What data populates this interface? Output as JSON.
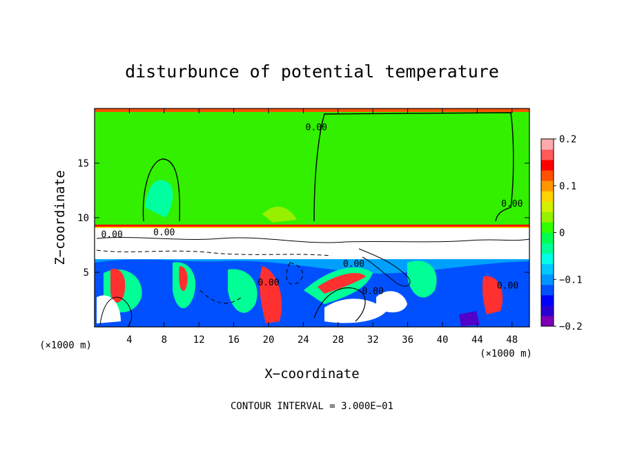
{
  "chart_data": {
    "type": "heatmap",
    "title": "disturbunce of potential temperature",
    "xlabel": "X−coordinate",
    "ylabel": "Z−coordinate",
    "x_unit_label": "(×1000 m)",
    "x_unit_label_right": "(×1000 m)",
    "footer": "CONTOUR INTERVAL = 3.000E−01",
    "xlim": [
      0,
      50
    ],
    "ylim": [
      0,
      20
    ],
    "x_ticks": [
      4,
      8,
      12,
      16,
      20,
      24,
      28,
      32,
      36,
      40,
      44,
      48
    ],
    "y_ticks": [
      5,
      10,
      15
    ],
    "colorbar": {
      "range": [
        -0.2,
        0.2
      ],
      "ticks": [
        {
          "value": 0.2,
          "label": "0.2"
        },
        {
          "value": 0.1,
          "label": "0.1"
        },
        {
          "value": 0,
          "label": "0"
        },
        {
          "value": -0.1,
          "label": "−0.1"
        },
        {
          "value": -0.2,
          "label": "−0.2"
        }
      ],
      "colors": [
        "#7d00b4",
        "#2800d2",
        "#0000ff",
        "#0050ff",
        "#0096ff",
        "#00c8ff",
        "#00ffe6",
        "#00ff96",
        "#00ff50",
        "#32ff00",
        "#96f000",
        "#d2f000",
        "#ffd200",
        "#ff9600",
        "#ff5000",
        "#ff0000",
        "#ff5a5a",
        "#ffaaaa"
      ]
    },
    "contour_labels": [
      {
        "text": "0.00",
        "x": 25.5,
        "y": 18
      },
      {
        "text": "0.00",
        "x": 48,
        "y": 11
      },
      {
        "text": "0.00",
        "x": 20,
        "y": 3.8
      },
      {
        "text": "0.00",
        "x": 29.8,
        "y": 5.5
      },
      {
        "text": "0.00",
        "x": 32,
        "y": 3
      },
      {
        "text": "0.00",
        "x": 47.5,
        "y": 3.5
      },
      {
        "text": "0.00",
        "x": 2,
        "y": 8.2
      },
      {
        "text": "0.00",
        "x": 8,
        "y": 8.4
      }
    ]
  }
}
